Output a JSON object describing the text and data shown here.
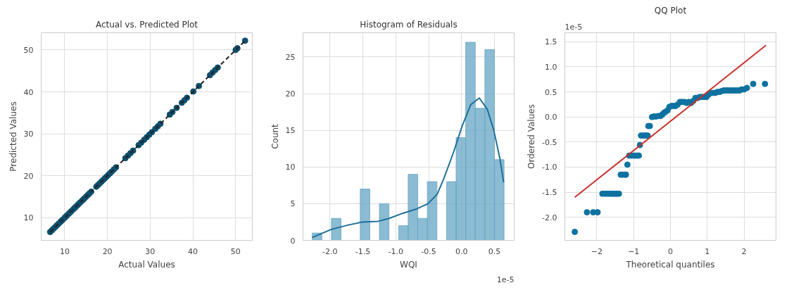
{
  "chart_data": [
    {
      "type": "scatter",
      "title": "Actual vs. Predicted Plot",
      "xlabel": "Actual Values",
      "ylabel": "Predicted Values",
      "xlim": [
        4.5,
        53.9
      ],
      "ylim": [
        4.6,
        54.1
      ],
      "xticks": [
        10,
        20,
        30,
        40,
        50
      ],
      "yticks": [
        10,
        20,
        30,
        40,
        50
      ],
      "grid": true,
      "series": [
        {
          "marker": "circle",
          "color": "#0e4f6e",
          "x": [
            6.6,
            7.0,
            7.4,
            7.8,
            8.2,
            8.6,
            9.0,
            9.3,
            9.6,
            10.0,
            10.3,
            10.6,
            11.0,
            11.3,
            11.6,
            12.0,
            12.3,
            12.6,
            13.0,
            13.3,
            13.6,
            14.0,
            14.3,
            14.6,
            15.0,
            15.4,
            15.8,
            16.2,
            17.4,
            17.8,
            18.2,
            18.6,
            19.0,
            19.4,
            19.8,
            20.2,
            20.6,
            21.0,
            21.5,
            22.0,
            24.2,
            24.8,
            25.4,
            26.0,
            27.3,
            27.9,
            28.6,
            29.2,
            29.8,
            30.4,
            31.2,
            31.8,
            32.4,
            34.6,
            35.2,
            36.2,
            37.4,
            38.0,
            38.6,
            40.1,
            41.4,
            44.0,
            44.6,
            45.2,
            45.8,
            50.0,
            50.4,
            52.2
          ],
          "values": [
            6.6,
            7.0,
            7.4,
            7.8,
            8.2,
            8.6,
            9.0,
            9.3,
            9.6,
            10.0,
            10.3,
            10.6,
            11.0,
            11.3,
            11.6,
            12.0,
            12.3,
            12.6,
            13.0,
            13.3,
            13.6,
            14.0,
            14.3,
            14.6,
            15.0,
            15.4,
            15.8,
            16.2,
            17.4,
            17.8,
            18.2,
            18.6,
            19.0,
            19.4,
            19.8,
            20.2,
            20.6,
            21.0,
            21.5,
            22.0,
            24.2,
            24.8,
            25.4,
            26.0,
            27.3,
            27.9,
            28.6,
            29.2,
            29.8,
            30.4,
            31.2,
            31.8,
            32.4,
            34.6,
            35.2,
            36.2,
            37.4,
            38.0,
            38.6,
            40.1,
            41.4,
            44.0,
            44.6,
            45.2,
            45.8,
            50.0,
            50.4,
            52.2
          ]
        },
        {
          "type": "line",
          "color": "#222222",
          "line_style": "dashed",
          "x": [
            6.6,
            52.2
          ],
          "values": [
            6.6,
            52.2
          ]
        }
      ]
    },
    {
      "type": "histogram",
      "title": "Histogram of Residuals",
      "xlabel": "WQI",
      "ylabel": "Count",
      "xlim": [
        -2.41,
        0.8
      ],
      "ylim": [
        0,
        28.3
      ],
      "xticks": [
        {
          "value": -2,
          "label": "-2.0"
        },
        {
          "value": -1.5,
          "label": "-1.5"
        },
        {
          "value": -1,
          "label": "-1.0"
        },
        {
          "value": -0.5,
          "label": "-0.5"
        },
        {
          "value": 0,
          "label": "0.0"
        },
        {
          "value": 0.5,
          "label": "0.5"
        }
      ],
      "yticks": [
        0,
        5,
        10,
        15,
        20,
        25
      ],
      "grid": true,
      "annotations": [
        "1e-5"
      ],
      "series": [
        {
          "color": "#64a5c4",
          "bins": [
            -2.269,
            -2.1233,
            -1.9775,
            -1.8318,
            -1.686,
            -1.5403,
            -1.3945,
            -1.2488,
            -1.103,
            -0.9573,
            -0.8115,
            -0.6658,
            -0.52,
            -0.3743,
            -0.2285,
            -0.0828,
            0.063,
            0.2087,
            0.3545,
            0.5002,
            0.646
          ],
          "values": [
            1,
            0,
            3,
            0,
            0,
            7,
            0,
            5,
            0,
            2,
            9,
            3,
            8,
            0,
            8,
            14,
            27,
            18,
            26,
            11
          ]
        },
        {
          "type": "line",
          "color": "#1f6f98",
          "x": [
            -2.27,
            -1.98,
            -1.72,
            -1.51,
            -1.27,
            -1.1,
            -0.89,
            -0.68,
            -0.51,
            -0.37,
            -0.27,
            -0.13,
            0.01,
            0.14,
            0.27,
            0.39,
            0.49,
            0.58,
            0.64
          ],
          "values": [
            0.4,
            1.5,
            2.1,
            2.5,
            2.6,
            3.0,
            3.7,
            4.3,
            5.0,
            6.3,
            8.4,
            11.8,
            15.6,
            18.5,
            19.4,
            17.9,
            15.0,
            11.3,
            7.9
          ]
        }
      ]
    },
    {
      "type": "scatter",
      "title": "QQ Plot",
      "xlabel": "Theoretical quantiles",
      "ylabel": "Ordered Values",
      "xlim": [
        -2.87,
        2.87
      ],
      "ylim": [
        -2.46,
        1.68
      ],
      "xticks": [
        -2,
        -1,
        0,
        1,
        2
      ],
      "yticks": [
        {
          "value": -2,
          "label": "-2.0"
        },
        {
          "value": -1.5,
          "label": "-1.5"
        },
        {
          "value": -1,
          "label": "-1.0"
        },
        {
          "value": -0.5,
          "label": "-0.5"
        },
        {
          "value": 0,
          "label": "0.0"
        },
        {
          "value": 0.5,
          "label": "0.5"
        },
        {
          "value": 1,
          "label": "1.0"
        },
        {
          "value": 1.5,
          "label": "1.5"
        }
      ],
      "grid": true,
      "annotations": [
        "1e-5"
      ],
      "series": [
        {
          "marker": "circle",
          "color": "#0e72a0",
          "x": [
            -2.6,
            -2.27,
            -2.1,
            -1.98,
            -1.85,
            -1.78,
            -1.72,
            -1.66,
            -1.6,
            -1.55,
            -1.5,
            -1.45,
            -1.4,
            -1.35,
            -1.3,
            -1.25,
            -1.21,
            -1.17,
            -1.12,
            -1.06,
            -1.0,
            -0.95,
            -0.9,
            -0.86,
            -0.83,
            -0.8,
            -0.74,
            -0.68,
            -0.62,
            -0.6,
            -0.56,
            -0.5,
            -0.45,
            -0.39,
            -0.33,
            -0.27,
            -0.22,
            -0.18,
            -0.14,
            -0.08,
            -0.03,
            0.03,
            0.08,
            0.14,
            0.2,
            0.26,
            0.32,
            0.38,
            0.44,
            0.5,
            0.56,
            0.62,
            0.68,
            0.74,
            0.8,
            0.86,
            0.92,
            0.98,
            1.04,
            1.1,
            1.16,
            1.22,
            1.28,
            1.34,
            1.4,
            1.46,
            1.52,
            1.58,
            1.64,
            1.7,
            1.76,
            1.82,
            1.88,
            1.94,
            2.0,
            2.08,
            2.25,
            2.57
          ],
          "values": [
            -2.29,
            -1.9,
            -1.9,
            -1.9,
            -1.53,
            -1.53,
            -1.53,
            -1.53,
            -1.53,
            -1.53,
            -1.53,
            -1.53,
            -1.53,
            -1.15,
            -1.15,
            -1.15,
            -1.15,
            -0.95,
            -0.77,
            -0.77,
            -0.77,
            -0.77,
            -0.77,
            -0.77,
            -0.56,
            -0.37,
            -0.37,
            -0.37,
            -0.37,
            -0.18,
            -0.18,
            0.0,
            0.01,
            0.01,
            0.02,
            0.02,
            0.05,
            0.08,
            0.1,
            0.13,
            0.2,
            0.22,
            0.22,
            0.22,
            0.25,
            0.3,
            0.3,
            0.3,
            0.28,
            0.3,
            0.28,
            0.32,
            0.38,
            0.38,
            0.4,
            0.4,
            0.4,
            0.4,
            0.45,
            0.48,
            0.48,
            0.48,
            0.5,
            0.5,
            0.52,
            0.53,
            0.53,
            0.53,
            0.53,
            0.53,
            0.53,
            0.53,
            0.53,
            0.55,
            0.55,
            0.58,
            0.66,
            0.66
          ]
        },
        {
          "type": "line",
          "color": "#c9302c",
          "x": [
            -2.6,
            2.6
          ],
          "values": [
            -1.6,
            1.43
          ]
        }
      ]
    }
  ]
}
